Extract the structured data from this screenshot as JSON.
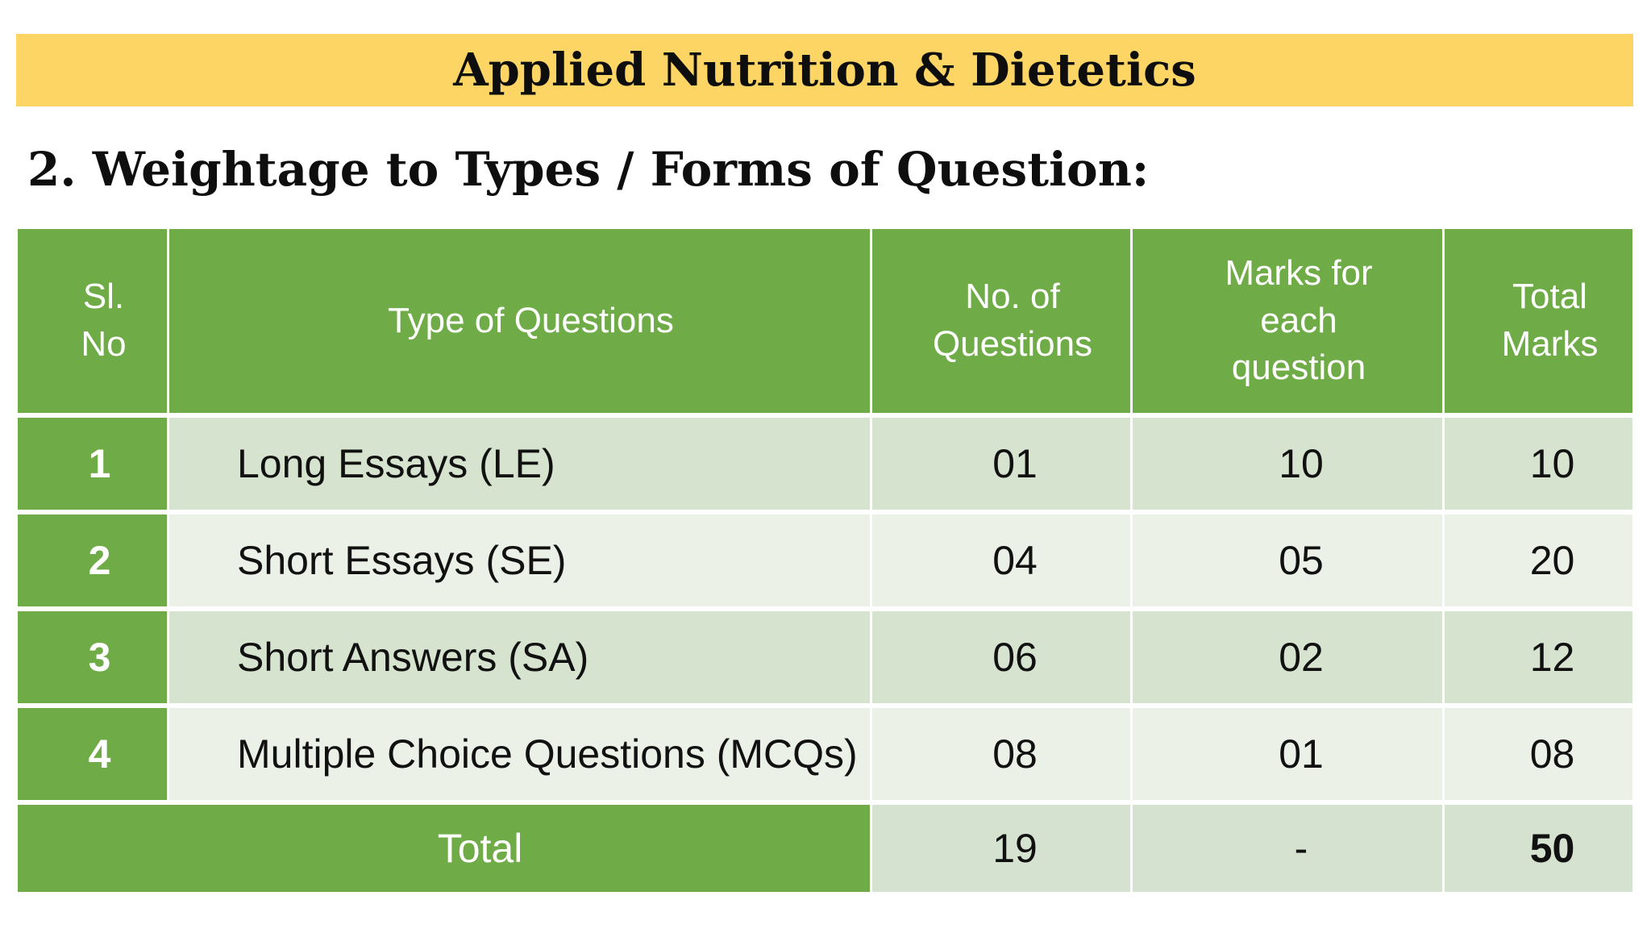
{
  "title": "Applied Nutrition & Dietetics",
  "heading": "2. Weightage to Types / Forms of Question:",
  "table": {
    "headers": [
      "Sl.\nNo",
      "Type of Questions",
      "No. of\nQuestions",
      "Marks for\neach\nquestion",
      "Total\nMarks"
    ],
    "rows": [
      {
        "sl": "1",
        "type": "Long Essays (LE)",
        "num": "01",
        "marks": "10",
        "total": "10"
      },
      {
        "sl": "2",
        "type": "Short Essays (SE)",
        "num": "04",
        "marks": "05",
        "total": "20"
      },
      {
        "sl": "3",
        "type": "Short Answers (SA)",
        "num": "06",
        "marks": "02",
        "total": "12"
      },
      {
        "sl": "4",
        "type": "Multiple Choice Questions (MCQs)",
        "num": "08",
        "marks": "01",
        "total": "08"
      }
    ],
    "total_row": {
      "label": "Total",
      "num": "19",
      "marks": "-",
      "total": "50"
    }
  },
  "colors": {
    "title_bar_bg": "#FCD564",
    "table_header_green": "#6FAC47",
    "row_band_dark": "#D6E3CE",
    "row_band_light": "#ECF1E7",
    "total_row_light": "#D5E2D0",
    "text_dark": "#111111",
    "text_white": "#FFFFFF"
  }
}
